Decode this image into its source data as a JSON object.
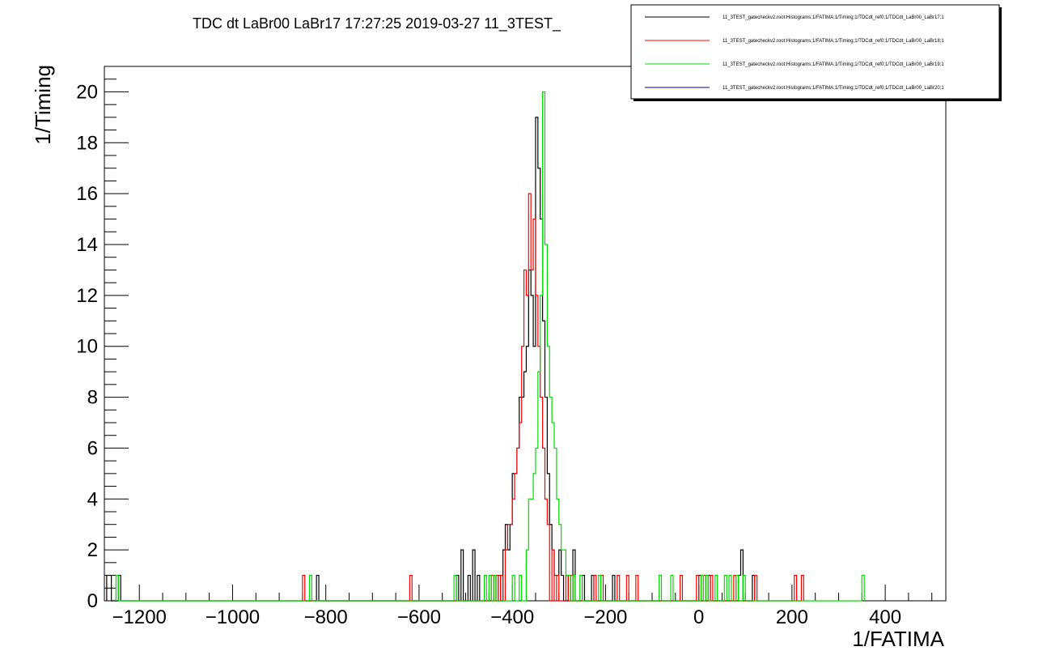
{
  "chart_data": {
    "type": "line",
    "title": "TDC dt LaBr00 LaBr17  17:27:25  2019-03-27  11_3TEST_",
    "xlabel": "1/FATIMA",
    "ylabel": "1/Timing",
    "xlim": [
      -1275,
      530
    ],
    "ylim": [
      0,
      21
    ],
    "x_ticks": [
      -1200,
      -1000,
      -800,
      -600,
      -400,
      -200,
      0,
      200,
      400
    ],
    "y_ticks": [
      0,
      2,
      4,
      6,
      8,
      10,
      12,
      14,
      16,
      18,
      20
    ],
    "grid": false,
    "legend_position": "top-right",
    "series": [
      {
        "name": "11_3TEST_gatecheckv2.root:Histograms;1/FATIMA;1/Timing;1/TDCdt_ref0;1/TDCdt_LaBr00_LaBr17;1",
        "color": "#000000",
        "bin_width": 5,
        "bins": [
          [
            -1270,
            1
          ],
          [
            -1265,
            1
          ],
          [
            -1245,
            1
          ],
          [
            -820,
            1
          ],
          [
            -520,
            1
          ],
          [
            -510,
            2
          ],
          [
            -495,
            1
          ],
          [
            -485,
            2
          ],
          [
            -475,
            1
          ],
          [
            -440,
            1
          ],
          [
            -430,
            1
          ],
          [
            -420,
            2
          ],
          [
            -415,
            3
          ],
          [
            -410,
            2
          ],
          [
            -405,
            3
          ],
          [
            -400,
            5
          ],
          [
            -395,
            5
          ],
          [
            -390,
            6
          ],
          [
            -385,
            8
          ],
          [
            -380,
            8
          ],
          [
            -375,
            9
          ],
          [
            -370,
            10
          ],
          [
            -365,
            13
          ],
          [
            -360,
            12
          ],
          [
            -355,
            10
          ],
          [
            -350,
            19
          ],
          [
            -345,
            17
          ],
          [
            -340,
            15
          ],
          [
            -335,
            11
          ],
          [
            -330,
            8
          ],
          [
            -325,
            5
          ],
          [
            -320,
            3
          ],
          [
            -315,
            2
          ],
          [
            -310,
            1
          ],
          [
            -305,
            1
          ],
          [
            -300,
            2
          ],
          [
            -295,
            1
          ],
          [
            -280,
            1
          ],
          [
            -270,
            2
          ],
          [
            -250,
            1
          ],
          [
            -230,
            1
          ],
          [
            -185,
            1
          ],
          [
            0,
            1
          ],
          [
            20,
            1
          ],
          [
            85,
            1
          ],
          [
            90,
            2
          ],
          [
            115,
            1
          ]
        ]
      },
      {
        "name": "11_3TEST_gatecheckv2.root:Histograms;1/FATIMA;1/Timing;1/TDCdt_ref0;1/TDCdt_LaBr00_LaBr18;1",
        "color": "#ff0000",
        "bin_width": 5,
        "bins": [
          [
            -850,
            1
          ],
          [
            -620,
            1
          ],
          [
            -445,
            1
          ],
          [
            -435,
            1
          ],
          [
            -425,
            1
          ],
          [
            -415,
            2
          ],
          [
            -410,
            3
          ],
          [
            -405,
            3
          ],
          [
            -400,
            4
          ],
          [
            -395,
            5
          ],
          [
            -390,
            6
          ],
          [
            -385,
            7
          ],
          [
            -380,
            10
          ],
          [
            -375,
            13
          ],
          [
            -370,
            12
          ],
          [
            -365,
            16
          ],
          [
            -360,
            13
          ],
          [
            -355,
            15
          ],
          [
            -350,
            12
          ],
          [
            -345,
            10
          ],
          [
            -340,
            8
          ],
          [
            -335,
            6
          ],
          [
            -330,
            4
          ],
          [
            -325,
            3
          ],
          [
            -315,
            2
          ],
          [
            -305,
            1
          ],
          [
            -285,
            1
          ],
          [
            -275,
            1
          ],
          [
            -225,
            1
          ],
          [
            -210,
            1
          ],
          [
            -175,
            1
          ],
          [
            -155,
            1
          ],
          [
            -135,
            1
          ],
          [
            -40,
            1
          ],
          [
            -5,
            1
          ],
          [
            10,
            1
          ],
          [
            25,
            1
          ],
          [
            75,
            1
          ],
          [
            120,
            1
          ],
          [
            205,
            1
          ],
          [
            220,
            1
          ]
        ]
      },
      {
        "name": "11_3TEST_gatecheckv2.root:Histograms;1/FATIMA;1/Timing;1/TDCdt_ref0;1/TDCdt_LaBr00_LaBr19;1",
        "color": "#00dd00",
        "bin_width": 5,
        "bins": [
          [
            -1250,
            1
          ],
          [
            -835,
            1
          ],
          [
            -525,
            1
          ],
          [
            -460,
            1
          ],
          [
            -450,
            1
          ],
          [
            -440,
            1
          ],
          [
            -400,
            1
          ],
          [
            -385,
            1
          ],
          [
            -370,
            2
          ],
          [
            -365,
            4
          ],
          [
            -360,
            4
          ],
          [
            -355,
            5
          ],
          [
            -350,
            6
          ],
          [
            -345,
            9
          ],
          [
            -340,
            12
          ],
          [
            -335,
            20
          ],
          [
            -330,
            14
          ],
          [
            -325,
            10
          ],
          [
            -320,
            8
          ],
          [
            -315,
            7
          ],
          [
            -310,
            6
          ],
          [
            -305,
            4
          ],
          [
            -300,
            3
          ],
          [
            -295,
            2
          ],
          [
            -290,
            2
          ],
          [
            -285,
            1
          ],
          [
            -280,
            1
          ],
          [
            -270,
            1
          ],
          [
            -255,
            1
          ],
          [
            -215,
            1
          ],
          [
            -85,
            1
          ],
          [
            -60,
            1
          ],
          [
            5,
            1
          ],
          [
            15,
            1
          ],
          [
            35,
            1
          ],
          [
            55,
            1
          ],
          [
            65,
            1
          ],
          [
            80,
            1
          ],
          [
            95,
            1
          ],
          [
            350,
            1
          ]
        ]
      },
      {
        "name": "11_3TEST_gatecheckv2.root:Histograms;1/FATIMA;1/Timing;1/TDCdt_ref0;1/TDCdt_LaBr00_LaBr20;1",
        "color": "#0000aa",
        "bin_width": 5,
        "bins": []
      }
    ]
  }
}
